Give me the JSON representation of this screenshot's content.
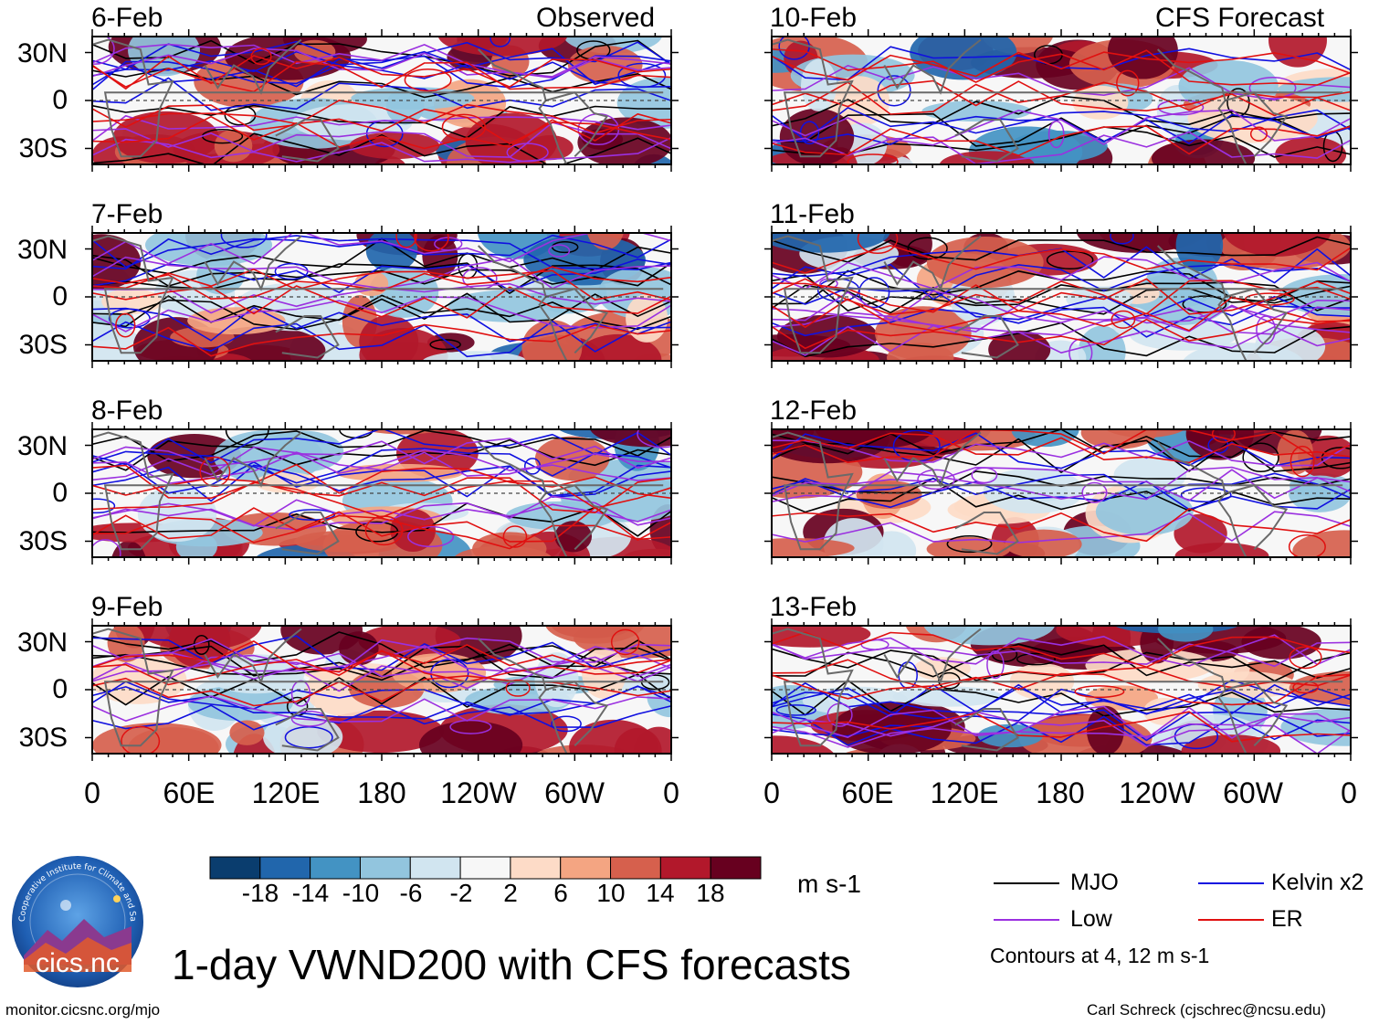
{
  "title": "1-day VWND200 with CFS forecasts",
  "left_corner_label": "Observed",
  "right_corner_label": "CFS Forecast",
  "footer_left": "monitor.cicsnc.org/mjo",
  "footer_right": "Carl Schreck (cjschrec@ncsu.edu)",
  "logo_text": "cics.nc",
  "logo_ring_text": "Cooperative Institute for Climate and Satellites",
  "chart_data": {
    "type": "heatmap",
    "variable": "200-hPa meridional wind (VWND200) anomaly",
    "units": "m s-1",
    "panels_left": [
      {
        "date": "6-Feb",
        "source": "Observed"
      },
      {
        "date": "7-Feb",
        "source": "Observed"
      },
      {
        "date": "8-Feb",
        "source": "Observed"
      },
      {
        "date": "9-Feb",
        "source": "Observed"
      }
    ],
    "panels_right": [
      {
        "date": "10-Feb",
        "source": "CFS Forecast"
      },
      {
        "date": "11-Feb",
        "source": "CFS Forecast"
      },
      {
        "date": "12-Feb",
        "source": "CFS Forecast"
      },
      {
        "date": "13-Feb",
        "source": "CFS Forecast"
      }
    ],
    "lat_tick_labels": [
      "30N",
      "0",
      "30S"
    ],
    "lat_ticks": [
      30,
      0,
      -30
    ],
    "lat_range": [
      -40,
      40
    ],
    "lon_tick_labels": [
      "0",
      "60E",
      "120E",
      "180",
      "120W",
      "60W",
      "0"
    ],
    "lon_ticks": [
      0,
      60,
      120,
      180,
      240,
      300,
      360
    ],
    "lon_range": [
      0,
      360
    ],
    "colorbar": {
      "tick_labels": [
        "-18",
        "-14",
        "-10",
        "-6",
        "-2",
        "2",
        "6",
        "10",
        "14",
        "18"
      ],
      "colors": [
        "#0a3d6e",
        "#2166ac",
        "#4393c3",
        "#92c5de",
        "#d1e5f0",
        "#f7f7f7",
        "#fddbc7",
        "#f4a582",
        "#d6604d",
        "#b2182b",
        "#67001f"
      ]
    },
    "contour_legend": [
      {
        "label": "MJO",
        "color": "#000000"
      },
      {
        "label": "Kelvin x2",
        "color": "#1010e0"
      },
      {
        "label": "Low",
        "color": "#9b30e0"
      },
      {
        "label": "ER",
        "color": "#e01010"
      }
    ],
    "contour_note": "Contours at 4, 12 m s-1"
  }
}
